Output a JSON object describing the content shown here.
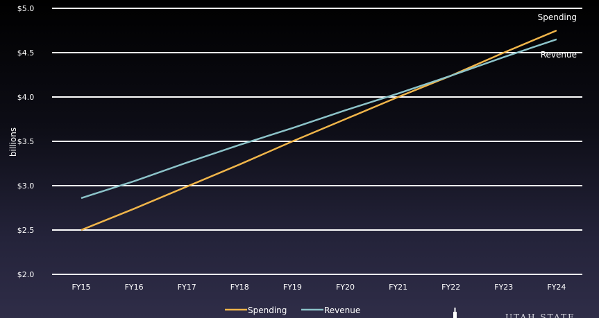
{
  "chart_data": {
    "type": "line",
    "categories": [
      "FY15",
      "FY16",
      "FY17",
      "FY18",
      "FY19",
      "FY20",
      "FY21",
      "FY22",
      "FY23",
      "FY24"
    ],
    "series": [
      {
        "name": "Spending",
        "color": "#f0b54a",
        "values": [
          2.5,
          2.74,
          2.99,
          3.24,
          3.5,
          3.75,
          4.0,
          4.24,
          4.5,
          4.75
        ]
      },
      {
        "name": "Revenue",
        "color": "#8cc3c9",
        "values": [
          2.86,
          3.05,
          3.26,
          3.46,
          3.65,
          3.85,
          4.04,
          4.24,
          4.45,
          4.65
        ]
      }
    ],
    "ylabel": "billions",
    "ylim": [
      2.0,
      5.0
    ],
    "yticks": [
      {
        "value": 2.0,
        "label": "$2.0"
      },
      {
        "value": 2.5,
        "label": "$2.5"
      },
      {
        "value": 3.0,
        "label": "$3.0"
      },
      {
        "value": 3.5,
        "label": "$3.5"
      },
      {
        "value": 4.0,
        "label": "$4.0"
      },
      {
        "value": 4.5,
        "label": "$4.5"
      },
      {
        "value": 5.0,
        "label": "$5.0"
      }
    ],
    "grid": true,
    "gridline_color": "#ffffff",
    "legend_position": "bottom"
  },
  "logo": {
    "text": "UTAH STATE",
    "icon": "capitol-icon"
  }
}
